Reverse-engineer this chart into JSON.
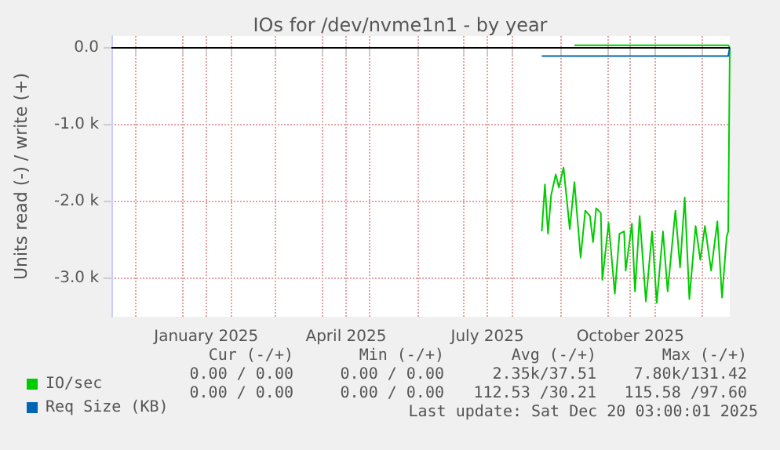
{
  "chart_data": {
    "type": "line",
    "title": "IOs for /dev/nvme1n1 - by year",
    "ylabel": "Units read (-) / write (+)",
    "xlim": [
      "2024-11-16",
      "2025-12-19"
    ],
    "xticks": [
      {
        "value": "2024-12-01",
        "label": null
      },
      {
        "value": "2025-01-01",
        "label": null
      },
      {
        "value": "2025-01-16",
        "label": "January 2025"
      },
      {
        "value": "2025-02-01",
        "label": null
      },
      {
        "value": "2025-03-01",
        "label": null
      },
      {
        "value": "2025-04-01",
        "label": null
      },
      {
        "value": "2025-04-16",
        "label": "April 2025"
      },
      {
        "value": "2025-05-01",
        "label": null
      },
      {
        "value": "2025-06-01",
        "label": null
      },
      {
        "value": "2025-07-01",
        "label": null
      },
      {
        "value": "2025-07-16",
        "label": "July 2025"
      },
      {
        "value": "2025-08-01",
        "label": null
      },
      {
        "value": "2025-09-01",
        "label": null
      },
      {
        "value": "2025-10-01",
        "label": null
      },
      {
        "value": "2025-10-16",
        "label": "October 2025"
      },
      {
        "value": "2025-11-01",
        "label": null
      },
      {
        "value": "2025-12-01",
        "label": null
      }
    ],
    "ylim": [
      -3500,
      150
    ],
    "yticks": [
      {
        "value": -3000,
        "label": "-3.0 k"
      },
      {
        "value": -2000,
        "label": "-2.0 k"
      },
      {
        "value": -1000,
        "label": "-1.0 k"
      },
      {
        "value": 0,
        "label": "0.0"
      }
    ],
    "grid": true,
    "legend": "bottom left",
    "marker": "none",
    "line_style": "solid",
    "ref_lines": [
      {
        "axis": "y",
        "value": 0,
        "color": "#000000"
      }
    ],
    "series": [
      {
        "name": "IO/sec",
        "color": "#00cc00",
        "x": [
          "2025-08-20",
          "2025-08-22",
          "2025-08-24",
          "2025-08-26",
          "2025-08-29",
          "2025-08-31",
          "2025-09-03",
          "2025-09-07",
          "2025-09-10",
          "2025-09-14",
          "2025-09-17",
          "2025-09-20",
          "2025-09-22",
          "2025-09-24",
          "2025-09-27",
          "2025-09-28",
          "2025-10-02",
          "2025-10-06",
          "2025-10-09",
          "2025-10-12",
          "2025-10-13",
          "2025-10-17",
          "2025-10-19",
          "2025-10-22",
          "2025-10-26",
          "2025-10-30",
          "2025-11-02",
          "2025-11-06",
          "2025-11-09",
          "2025-11-14",
          "2025-11-17",
          "2025-11-20",
          "2025-11-23",
          "2025-11-27",
          "2025-11-30",
          "2025-12-03",
          "2025-12-07",
          "2025-12-11",
          "2025-12-14",
          "2025-12-17",
          "2025-12-18",
          "2025-12-19"
        ],
        "values": [
          -2390,
          -1780,
          -2420,
          -1920,
          -1650,
          -1820,
          -1560,
          -2360,
          -1750,
          -2730,
          -2120,
          -2190,
          -2530,
          -2090,
          -2150,
          -3020,
          -2280,
          -3200,
          -2420,
          -2390,
          -2900,
          -2290,
          -3170,
          -2190,
          -3300,
          -2390,
          -3320,
          -2390,
          -3170,
          -2120,
          -2860,
          -1950,
          -3270,
          -2320,
          -2760,
          -2320,
          -2900,
          -2260,
          -3250,
          -2460,
          -2390,
          0
        ]
      },
      {
        "color": "#00cc00",
        "x": [
          "2025-09-10",
          "2025-12-18",
          "2025-12-19"
        ],
        "values": [
          30,
          30,
          0
        ]
      },
      {
        "name": "Req Size (KB)",
        "color": "#0066b3",
        "x": [
          "2025-08-20",
          "2025-12-18",
          "2025-12-19"
        ],
        "values": [
          -110,
          -110,
          0
        ]
      }
    ],
    "annotations": [
      "Cur (-/+)",
      "Min (-/+)",
      "Avg (-/+)",
      "Max (-/+)",
      "0.00 / 0.00",
      "0.00 / 0.00",
      "2.35k/37.51",
      "7.80k/131.42",
      "0.00 / 0.00",
      "0.00 / 0.00",
      "112.53 /30.21",
      "115.58 /97.60",
      "Last update: Sat Dec 20 03:00:01 2025"
    ]
  }
}
